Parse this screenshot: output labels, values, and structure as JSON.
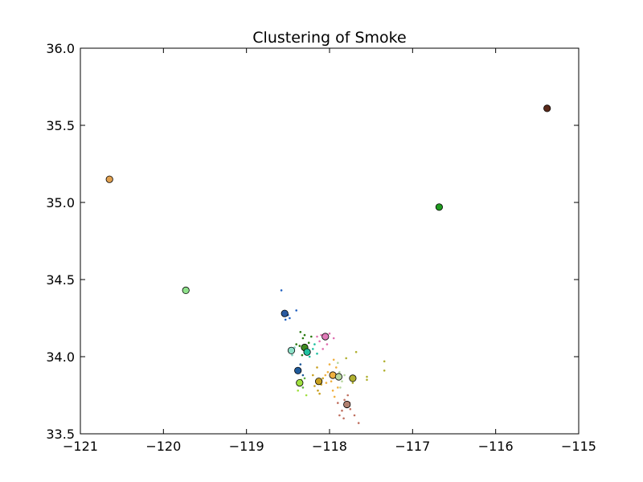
{
  "chart_data": {
    "type": "scatter",
    "title": "Clustering of Smoke",
    "xlabel": "",
    "ylabel": "",
    "xlim": [
      -121,
      -115
    ],
    "ylim": [
      33.5,
      36.0
    ],
    "x_ticks": [
      -121,
      -120,
      -119,
      -118,
      -117,
      -116,
      -115
    ],
    "x_tick_labels": [
      "−121",
      "−120",
      "−119",
      "−118",
      "−117",
      "−116",
      "−115"
    ],
    "y_ticks": [
      33.5,
      34.0,
      34.5,
      35.0,
      35.5,
      36.0
    ],
    "y_tick_labels": [
      "33.5",
      "34.0",
      "34.5",
      "35.0",
      "35.5",
      "36.0"
    ],
    "grid": false,
    "legend": "none",
    "centroids": [
      {
        "x": -120.65,
        "y": 35.15,
        "color": "#e0a050"
      },
      {
        "x": -115.38,
        "y": 35.61,
        "color": "#5a2a1a"
      },
      {
        "x": -116.68,
        "y": 34.97,
        "color": "#1f9a1f"
      },
      {
        "x": -119.73,
        "y": 34.43,
        "color": "#8ee08a"
      },
      {
        "x": -118.54,
        "y": 34.28,
        "color": "#2a5aa0"
      },
      {
        "x": -118.05,
        "y": 34.13,
        "color": "#e07ab8"
      },
      {
        "x": -118.3,
        "y": 34.06,
        "color": "#3f8a20"
      },
      {
        "x": -118.46,
        "y": 34.04,
        "color": "#8ee0c8"
      },
      {
        "x": -118.27,
        "y": 34.03,
        "color": "#20c0a0"
      },
      {
        "x": -118.38,
        "y": 33.91,
        "color": "#1f5a9a"
      },
      {
        "x": -117.96,
        "y": 33.88,
        "color": "#f0b040"
      },
      {
        "x": -117.89,
        "y": 33.87,
        "color": "#b8d8a0"
      },
      {
        "x": -117.72,
        "y": 33.86,
        "color": "#b0b030"
      },
      {
        "x": -118.13,
        "y": 33.84,
        "color": "#c8a020"
      },
      {
        "x": -118.36,
        "y": 33.83,
        "color": "#a0e040"
      },
      {
        "x": -117.79,
        "y": 33.69,
        "color": "#b08070"
      }
    ],
    "points": [
      {
        "x": -118.58,
        "y": 34.43,
        "color": "#2060c0"
      },
      {
        "x": -118.5,
        "y": 34.27,
        "color": "#2060c0"
      },
      {
        "x": -118.53,
        "y": 34.24,
        "color": "#2060c0"
      },
      {
        "x": -118.4,
        "y": 34.3,
        "color": "#2060c0"
      },
      {
        "x": -118.48,
        "y": 34.25,
        "color": "#2060c0"
      },
      {
        "x": -118.1,
        "y": 34.14,
        "color": "#e070b0"
      },
      {
        "x": -118.0,
        "y": 34.15,
        "color": "#e070b0"
      },
      {
        "x": -118.12,
        "y": 34.1,
        "color": "#e070b0"
      },
      {
        "x": -118.03,
        "y": 34.08,
        "color": "#e070b0"
      },
      {
        "x": -118.08,
        "y": 34.05,
        "color": "#e070b0"
      },
      {
        "x": -117.95,
        "y": 34.12,
        "color": "#e070b0"
      },
      {
        "x": -118.15,
        "y": 34.13,
        "color": "#e070b0"
      },
      {
        "x": -118.35,
        "y": 34.16,
        "color": "#2a7a10"
      },
      {
        "x": -118.32,
        "y": 34.12,
        "color": "#2a7a10"
      },
      {
        "x": -118.25,
        "y": 34.09,
        "color": "#2a7a10"
      },
      {
        "x": -118.28,
        "y": 34.04,
        "color": "#2a7a10"
      },
      {
        "x": -118.36,
        "y": 34.07,
        "color": "#2a7a10"
      },
      {
        "x": -118.22,
        "y": 34.13,
        "color": "#2a7a10"
      },
      {
        "x": -118.33,
        "y": 34.01,
        "color": "#2a7a10"
      },
      {
        "x": -118.3,
        "y": 34.14,
        "color": "#2a7a10"
      },
      {
        "x": -118.4,
        "y": 34.08,
        "color": "#2a7a10"
      },
      {
        "x": -118.2,
        "y": 34.05,
        "color": "#20c0a0"
      },
      {
        "x": -118.15,
        "y": 34.02,
        "color": "#20c0a0"
      },
      {
        "x": -118.24,
        "y": 34.0,
        "color": "#20c0a0"
      },
      {
        "x": -118.18,
        "y": 34.08,
        "color": "#20c0a0"
      },
      {
        "x": -118.42,
        "y": 34.06,
        "color": "#80d0c0"
      },
      {
        "x": -118.45,
        "y": 34.01,
        "color": "#80d0c0"
      },
      {
        "x": -118.4,
        "y": 33.92,
        "color": "#1f5a9a"
      },
      {
        "x": -118.35,
        "y": 33.95,
        "color": "#1f5a9a"
      },
      {
        "x": -118.32,
        "y": 33.88,
        "color": "#1f5a9a"
      },
      {
        "x": -118.3,
        "y": 33.86,
        "color": "#60b040"
      },
      {
        "x": -118.32,
        "y": 33.8,
        "color": "#60b040"
      },
      {
        "x": -118.28,
        "y": 33.75,
        "color": "#a0e040"
      },
      {
        "x": -118.38,
        "y": 33.78,
        "color": "#a0e040"
      },
      {
        "x": -118.34,
        "y": 33.85,
        "color": "#a0e040"
      },
      {
        "x": -118.15,
        "y": 33.93,
        "color": "#c8a020"
      },
      {
        "x": -118.2,
        "y": 33.88,
        "color": "#c8a020"
      },
      {
        "x": -118.1,
        "y": 33.82,
        "color": "#c8a020"
      },
      {
        "x": -118.14,
        "y": 33.78,
        "color": "#c8a020"
      },
      {
        "x": -118.18,
        "y": 33.81,
        "color": "#c8a020"
      },
      {
        "x": -118.12,
        "y": 33.76,
        "color": "#c8a020"
      },
      {
        "x": -118.08,
        "y": 33.86,
        "color": "#c8a020"
      },
      {
        "x": -118.0,
        "y": 33.95,
        "color": "#f0b040"
      },
      {
        "x": -117.95,
        "y": 33.98,
        "color": "#f0b040"
      },
      {
        "x": -117.92,
        "y": 33.93,
        "color": "#f0b040"
      },
      {
        "x": -118.02,
        "y": 33.9,
        "color": "#f0b040"
      },
      {
        "x": -117.98,
        "y": 33.84,
        "color": "#f0b040"
      },
      {
        "x": -117.9,
        "y": 33.8,
        "color": "#f0b040"
      },
      {
        "x": -118.05,
        "y": 33.88,
        "color": "#f0b040"
      },
      {
        "x": -117.96,
        "y": 33.78,
        "color": "#f0b040"
      },
      {
        "x": -117.94,
        "y": 33.74,
        "color": "#f0b040"
      },
      {
        "x": -118.04,
        "y": 33.83,
        "color": "#f0b040"
      },
      {
        "x": -117.88,
        "y": 33.9,
        "color": "#b8d8a0"
      },
      {
        "x": -117.85,
        "y": 33.84,
        "color": "#b8d8a0"
      },
      {
        "x": -117.9,
        "y": 33.96,
        "color": "#b8d8a0"
      },
      {
        "x": -117.82,
        "y": 33.88,
        "color": "#b8d8a0"
      },
      {
        "x": -117.87,
        "y": 33.8,
        "color": "#b8d8a0"
      },
      {
        "x": -117.8,
        "y": 33.99,
        "color": "#b0b030"
      },
      {
        "x": -117.68,
        "y": 34.03,
        "color": "#b0b030"
      },
      {
        "x": -117.55,
        "y": 33.87,
        "color": "#b0b030"
      },
      {
        "x": -117.55,
        "y": 33.85,
        "color": "#b0b030"
      },
      {
        "x": -117.34,
        "y": 33.97,
        "color": "#b0b030"
      },
      {
        "x": -117.34,
        "y": 33.91,
        "color": "#b0b030"
      },
      {
        "x": -117.72,
        "y": 33.83,
        "color": "#b0b030"
      },
      {
        "x": -117.78,
        "y": 33.75,
        "color": "#c07060"
      },
      {
        "x": -117.82,
        "y": 33.72,
        "color": "#c07060"
      },
      {
        "x": -117.75,
        "y": 33.66,
        "color": "#c07060"
      },
      {
        "x": -117.85,
        "y": 33.65,
        "color": "#c07060"
      },
      {
        "x": -117.88,
        "y": 33.62,
        "color": "#c07060"
      },
      {
        "x": -117.76,
        "y": 33.7,
        "color": "#c07060"
      },
      {
        "x": -117.65,
        "y": 33.57,
        "color": "#c07060"
      },
      {
        "x": -117.9,
        "y": 33.7,
        "color": "#c07060"
      },
      {
        "x": -117.83,
        "y": 33.6,
        "color": "#c07060"
      },
      {
        "x": -117.7,
        "y": 33.62,
        "color": "#c07060"
      }
    ]
  }
}
